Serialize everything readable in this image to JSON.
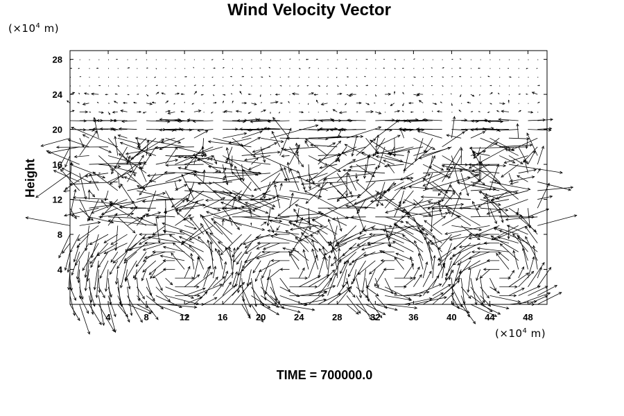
{
  "chart_data": {
    "type": "vector_field",
    "title": "Wind Velocity Vector",
    "ylabel": "Height",
    "xlabel": "",
    "x_unit": "(×10⁴ m)",
    "y_unit": "(×10⁴ m)",
    "unit_prefix": "(×10",
    "unit_exp": "4",
    "unit_suffix": " m)",
    "xlim": [
      0,
      50
    ],
    "ylim": [
      0,
      29
    ],
    "x_ticks": [
      4,
      8,
      12,
      16,
      20,
      24,
      28,
      32,
      36,
      40,
      44,
      48
    ],
    "y_ticks": [
      4,
      8,
      12,
      16,
      20,
      24,
      28
    ],
    "grid": false,
    "vector_field": {
      "x_start": 0.0,
      "x_step": 1.0,
      "x_count": 50,
      "y_start": 0.0,
      "y_step": 1.0,
      "y_count": 29,
      "layers": [
        {
          "y_min": 0,
          "y_max": 9,
          "pattern": "cells",
          "magnitude": 3.2
        },
        {
          "y_min": 9,
          "y_max": 20,
          "pattern": "turbulent",
          "magnitude": 5.0
        },
        {
          "y_min": 20,
          "y_max": 22,
          "pattern": "zonal",
          "magnitude": 2.4
        },
        {
          "y_min": 22,
          "y_max": 29,
          "pattern": "weak",
          "magnitude": 0.4
        }
      ]
    },
    "footer": {
      "label": "TIME =",
      "value": "700000.0"
    },
    "colors": {
      "arrow": "#000000",
      "frame": "#000000",
      "background": "#ffffff"
    }
  }
}
